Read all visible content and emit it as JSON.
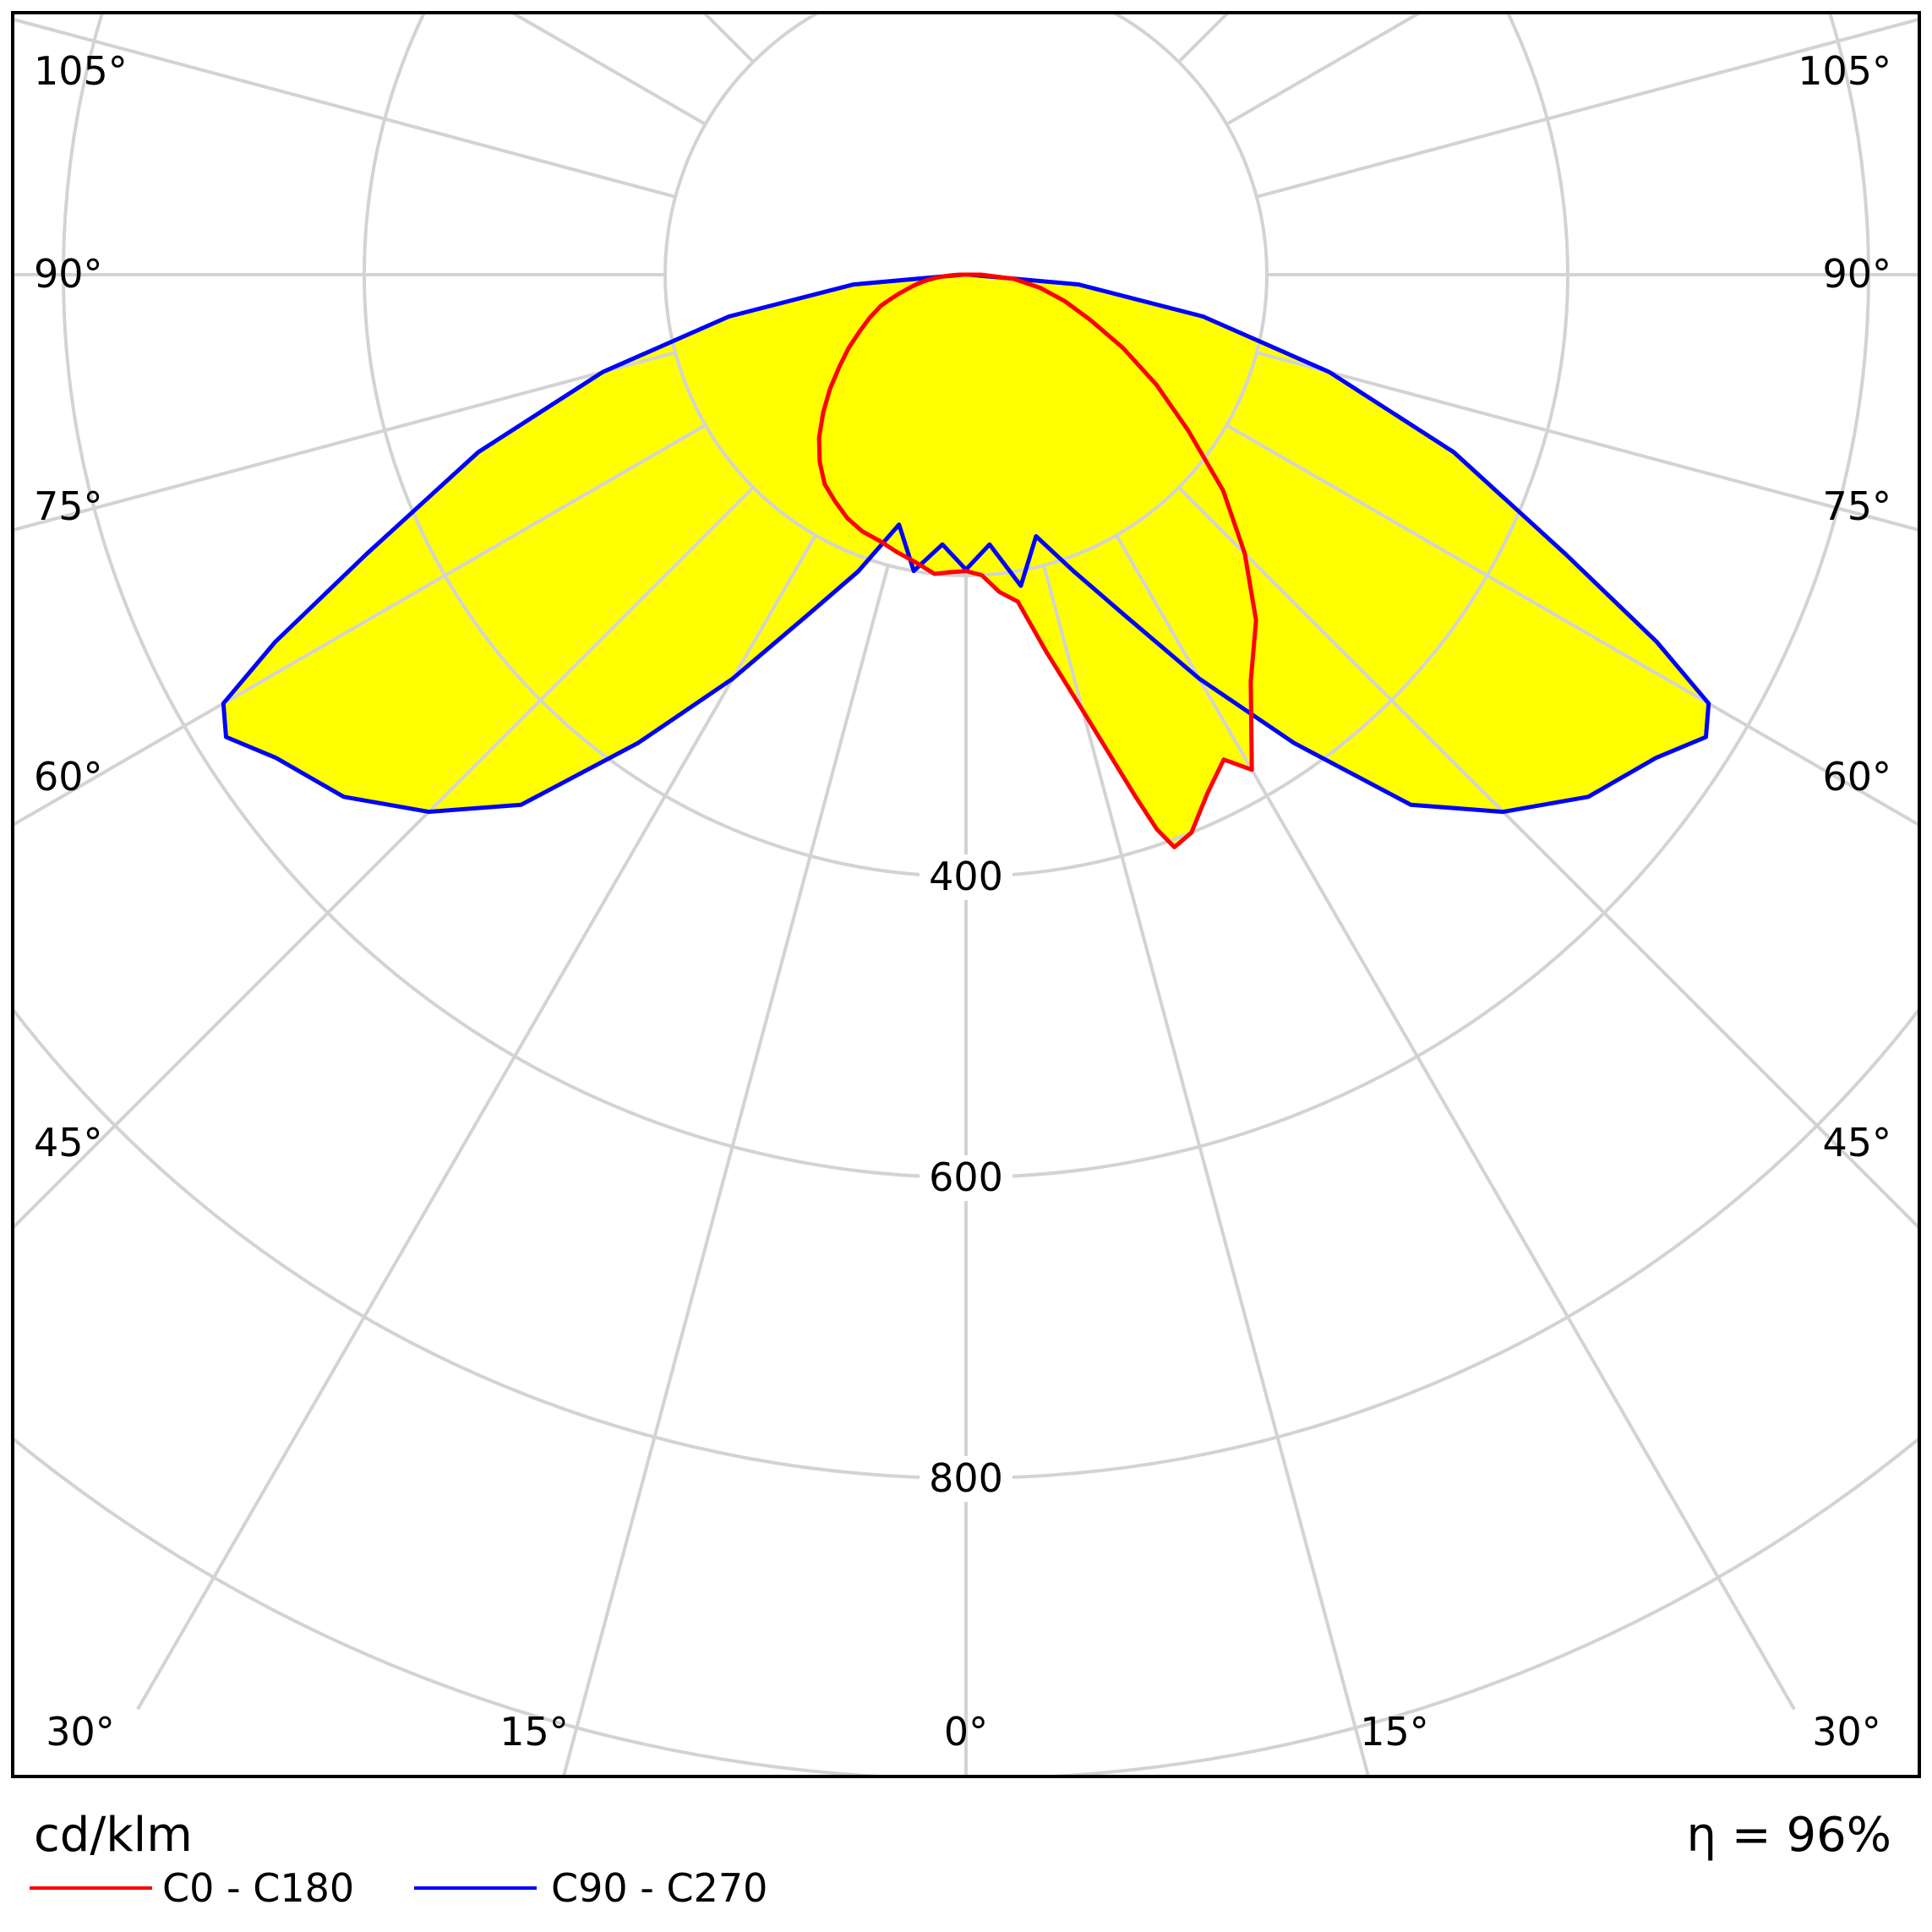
{
  "chart_data": {
    "type": "polar",
    "unit": "cd/klm",
    "efficiency": "η = 96%",
    "colors": {
      "fill": "#ffff00",
      "grid": "#d3d3d3"
    },
    "radial_ticks": [
      400,
      600,
      800
    ],
    "radial_max": 1000,
    "angle_labels": {
      "bottom": [
        "30°",
        "15°",
        "0°",
        "15°",
        "30°"
      ],
      "side": [
        "45°",
        "60°",
        "75°",
        "90°",
        "105°"
      ]
    },
    "series": [
      {
        "name": "C0 - C180",
        "color": "#ff0000",
        "points": [
          [
            -90,
            4
          ],
          [
            -88,
            9
          ],
          [
            -86,
            14
          ],
          [
            -84,
            20
          ],
          [
            -82,
            26
          ],
          [
            -80,
            31
          ],
          [
            -78,
            36
          ],
          [
            -76,
            41
          ],
          [
            -74,
            47
          ],
          [
            -72,
            53
          ],
          [
            -70,
            60
          ],
          [
            -66,
            70
          ],
          [
            -62,
            80
          ],
          [
            -58,
            92
          ],
          [
            -54,
            104
          ],
          [
            -50,
            118
          ],
          [
            -46,
            132
          ],
          [
            -42,
            146
          ],
          [
            -38,
            158
          ],
          [
            -34,
            168
          ],
          [
            -30,
            174
          ],
          [
            -26,
            180
          ],
          [
            -22,
            184
          ],
          [
            -18,
            186
          ],
          [
            -14,
            190
          ],
          [
            -10,
            194
          ],
          [
            -6,
            200
          ],
          [
            -3,
            198
          ],
          [
            0,
            197
          ],
          [
            3,
            200
          ],
          [
            6,
            212
          ],
          [
            9,
            220
          ],
          [
            12,
            256
          ],
          [
            15,
            300
          ],
          [
            18,
            365
          ],
          [
            19,
            390
          ],
          [
            20,
            405
          ],
          [
            22,
            400
          ],
          [
            25,
            380
          ],
          [
            28,
            365
          ],
          [
            30,
            380
          ],
          [
            35,
            330
          ],
          [
            40,
            300
          ],
          [
            45,
            262
          ],
          [
            50,
            223
          ],
          [
            55,
            180
          ],
          [
            60,
            146
          ],
          [
            65,
            115
          ],
          [
            70,
            88
          ],
          [
            75,
            68
          ],
          [
            80,
            50
          ],
          [
            85,
            32
          ],
          [
            90,
            10
          ]
        ]
      },
      {
        "name": "C90 - C270",
        "color": "#0000ff",
        "points": [
          [
            -90,
            2
          ],
          [
            -85,
            75
          ],
          [
            -80,
            160
          ],
          [
            -75,
            250
          ],
          [
            -70,
            345
          ],
          [
            -65,
            440
          ],
          [
            -62,
            520
          ],
          [
            -60,
            570
          ],
          [
            -58,
            580
          ],
          [
            -55,
            560
          ],
          [
            -50,
            540
          ],
          [
            -45,
            505
          ],
          [
            -40,
            460
          ],
          [
            -35,
            380
          ],
          [
            -30,
            310
          ],
          [
            -25,
            250
          ],
          [
            -20,
            210
          ],
          [
            -15,
            172
          ],
          [
            -10,
            200
          ],
          [
            -5,
            180
          ],
          [
            0,
            196
          ],
          [
            5,
            180
          ],
          [
            10,
            210
          ],
          [
            15,
            180
          ],
          [
            20,
            210
          ],
          [
            25,
            250
          ],
          [
            30,
            310
          ],
          [
            35,
            380
          ],
          [
            40,
            460
          ],
          [
            45,
            505
          ],
          [
            50,
            540
          ],
          [
            55,
            560
          ],
          [
            58,
            580
          ],
          [
            60,
            570
          ],
          [
            62,
            520
          ],
          [
            65,
            440
          ],
          [
            70,
            345
          ],
          [
            75,
            250
          ],
          [
            80,
            160
          ],
          [
            85,
            75
          ],
          [
            90,
            2
          ]
        ]
      }
    ]
  }
}
